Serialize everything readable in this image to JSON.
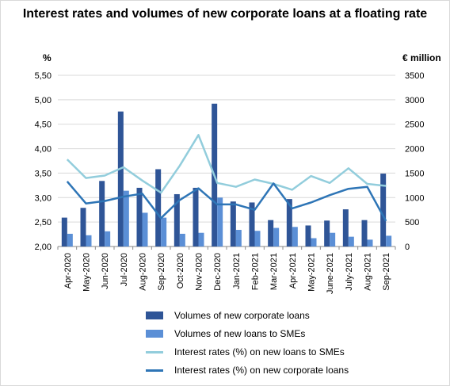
{
  "chart_data": {
    "type": "bar",
    "title": "Interest rates and volumes of new corporate loans at a floating rate",
    "ylabel_left": "%",
    "ylabel_right": "€ million",
    "left_axis": {
      "min": 2.0,
      "max": 5.5,
      "step": 0.5,
      "tick_labels": [
        "2,00",
        "2,50",
        "3,00",
        "3,50",
        "4,00",
        "4,50",
        "5,00",
        "5,50"
      ]
    },
    "right_axis": {
      "min": 0,
      "max": 3500,
      "step": 500,
      "tick_labels": [
        "0",
        "500",
        "1000",
        "1500",
        "2000",
        "2500",
        "3000",
        "3500"
      ]
    },
    "categories": [
      "Apr-2020",
      "May-2020",
      "Jun-2020",
      "Jul-2020",
      "Aug-2020",
      "Sep-2020",
      "Oct-2020",
      "Nov-2020",
      "Dec-2020",
      "Jan-2021",
      "Feb-2021",
      "Mar-2021",
      "Apr-2021",
      "May-2021",
      "June-2021",
      "July-2021",
      "Aug-2021",
      "Sep-2021"
    ],
    "grid": true,
    "legend_position": "bottom",
    "series": [
      {
        "name": "Volumes of new corporate loans",
        "type": "bar",
        "axis": "right",
        "color": "#2f5597",
        "values": [
          590,
          790,
          1340,
          2760,
          1200,
          1580,
          1070,
          1200,
          2920,
          920,
          900,
          540,
          970,
          430,
          530,
          760,
          540,
          1490
        ]
      },
      {
        "name": "Volumes of new loans to SMEs",
        "type": "bar",
        "axis": "right",
        "color": "#5b8fd6",
        "values": [
          260,
          230,
          310,
          1140,
          690,
          590,
          260,
          280,
          1000,
          340,
          320,
          380,
          400,
          170,
          280,
          200,
          140,
          220
        ]
      },
      {
        "name": "Interest rates (%) on new loans to SMEs",
        "type": "line",
        "axis": "left",
        "color": "#92cddc",
        "values": [
          3.78,
          3.4,
          3.45,
          3.62,
          3.35,
          3.1,
          3.65,
          4.28,
          3.3,
          3.22,
          3.37,
          3.28,
          3.16,
          3.44,
          3.3,
          3.6,
          3.28,
          3.24
        ]
      },
      {
        "name": "Interest rates (%) on new corporate loans",
        "type": "line",
        "axis": "left",
        "color": "#2e75b6",
        "values": [
          3.33,
          2.88,
          2.93,
          3.02,
          3.08,
          2.58,
          2.95,
          3.19,
          2.86,
          2.86,
          2.75,
          3.29,
          2.78,
          2.9,
          3.05,
          3.18,
          3.22,
          2.52
        ]
      }
    ]
  }
}
